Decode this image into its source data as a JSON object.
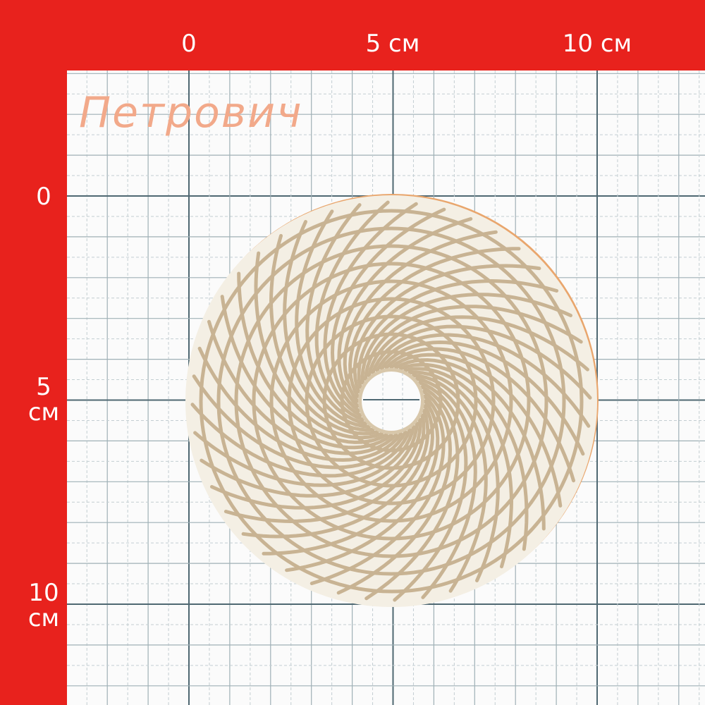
{
  "brand": "Петрович",
  "ruler": {
    "top": [
      "0",
      "5 см",
      "10 см"
    ],
    "left": [
      {
        "number": "0"
      },
      {
        "number": "5",
        "unit": "см"
      },
      {
        "number": "10",
        "unit": "см"
      }
    ]
  }
}
